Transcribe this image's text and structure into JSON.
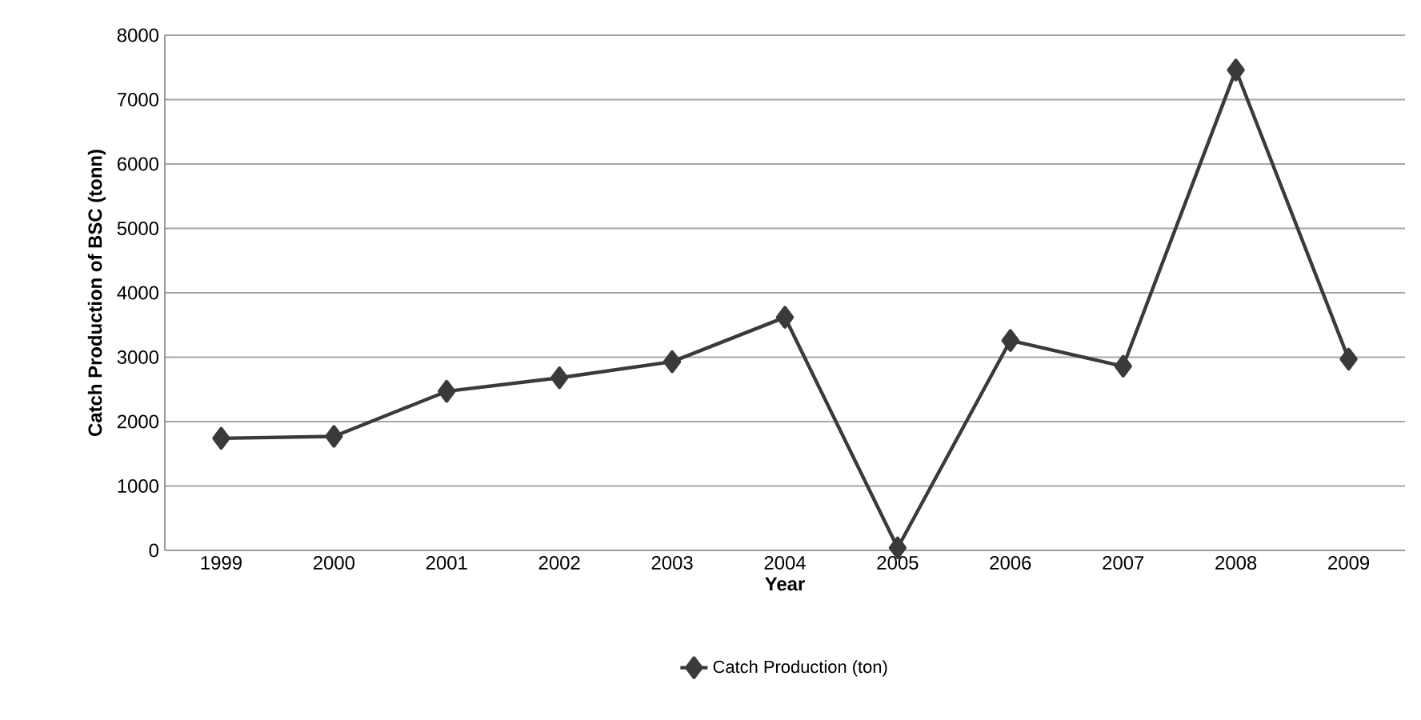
{
  "chart_data": {
    "type": "line",
    "xlabel": "Year",
    "ylabel": "Catch Production of BSC (tonn)",
    "categories": [
      "1999",
      "2000",
      "2001",
      "2002",
      "2003",
      "2004",
      "2005",
      "2006",
      "2007",
      "2008",
      "2009"
    ],
    "series": [
      {
        "name": "Catch Production (ton)",
        "color": "#3a3a3a",
        "values": [
          1740,
          1770,
          2470,
          2680,
          2930,
          3620,
          40,
          3260,
          2860,
          7460,
          2970
        ]
      }
    ],
    "ylim": [
      0,
      8000
    ],
    "yticks": [
      0,
      1000,
      2000,
      3000,
      4000,
      5000,
      6000,
      7000,
      8000
    ],
    "grid": "y",
    "legend": "bottom",
    "marker": "diamond",
    "line_style": "solid"
  }
}
